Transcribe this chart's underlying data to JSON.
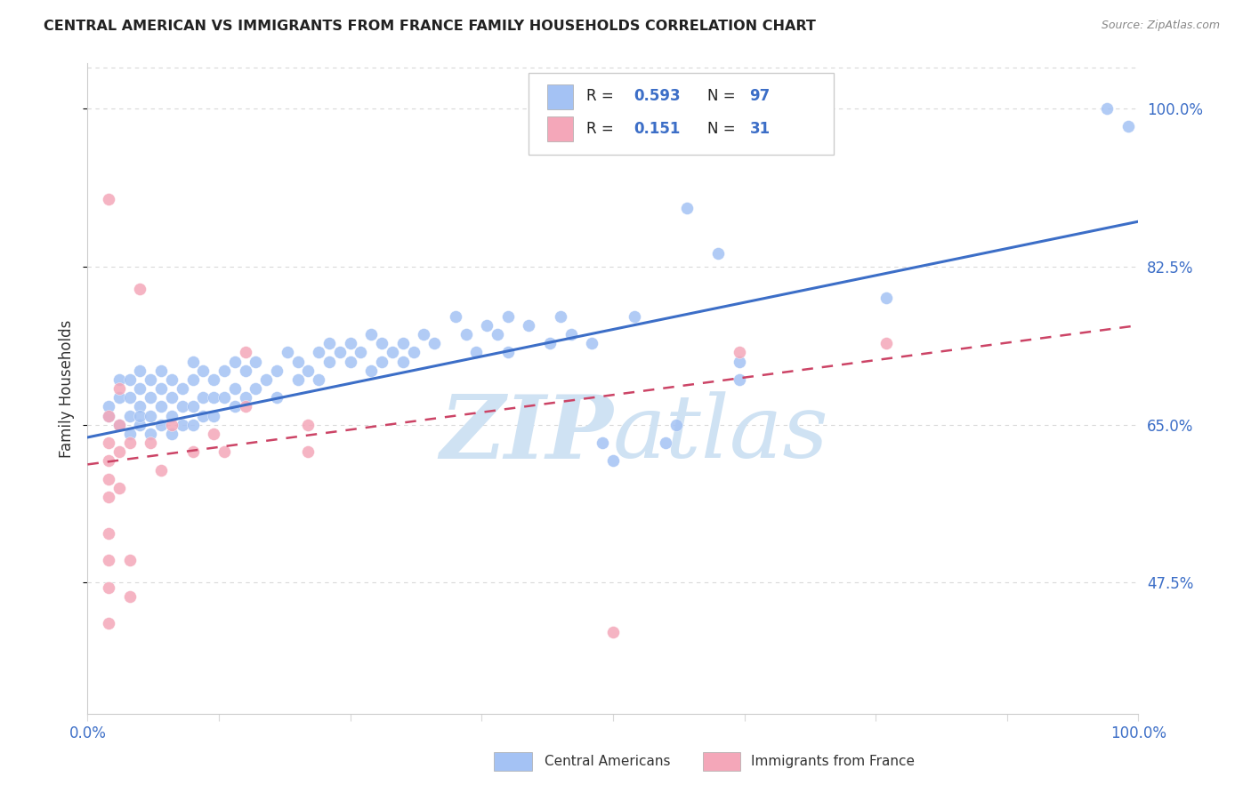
{
  "title": "CENTRAL AMERICAN VS IMMIGRANTS FROM FRANCE FAMILY HOUSEHOLDS CORRELATION CHART",
  "source_text": "Source: ZipAtlas.com",
  "ylabel": "Family Households",
  "legend_label_1": "Central Americans",
  "legend_label_2": "Immigrants from France",
  "r1": "0.593",
  "n1": "97",
  "r2": "0.151",
  "n2": "31",
  "xlim": [
    0.0,
    1.0
  ],
  "ylim": [
    0.33,
    1.05
  ],
  "yticks": [
    0.475,
    0.65,
    0.825,
    1.0
  ],
  "ytick_labels": [
    "47.5%",
    "65.0%",
    "82.5%",
    "100.0%"
  ],
  "xticks": [
    0.0,
    0.125,
    0.25,
    0.375,
    0.5,
    0.625,
    0.75,
    0.875,
    1.0
  ],
  "xtick_labels": [
    "0.0%",
    "",
    "",
    "",
    "",
    "",
    "",
    "",
    "100.0%"
  ],
  "color_blue": "#a4c2f4",
  "color_pink": "#f4a7b9",
  "line_blue": "#3c6ec7",
  "line_pink": "#cc4466",
  "watermark_color": "#cfe2f3",
  "grid_color": "#d9d9d9",
  "tick_color": "#3c6ec7",
  "r_color": "#3c6ec7",
  "label_color": "#222222",
  "blue_scatter": [
    [
      0.02,
      0.66
    ],
    [
      0.02,
      0.67
    ],
    [
      0.03,
      0.65
    ],
    [
      0.03,
      0.68
    ],
    [
      0.03,
      0.7
    ],
    [
      0.04,
      0.64
    ],
    [
      0.04,
      0.66
    ],
    [
      0.04,
      0.68
    ],
    [
      0.04,
      0.7
    ],
    [
      0.05,
      0.65
    ],
    [
      0.05,
      0.67
    ],
    [
      0.05,
      0.69
    ],
    [
      0.05,
      0.71
    ],
    [
      0.05,
      0.66
    ],
    [
      0.06,
      0.64
    ],
    [
      0.06,
      0.66
    ],
    [
      0.06,
      0.68
    ],
    [
      0.06,
      0.7
    ],
    [
      0.07,
      0.65
    ],
    [
      0.07,
      0.67
    ],
    [
      0.07,
      0.69
    ],
    [
      0.07,
      0.71
    ],
    [
      0.08,
      0.64
    ],
    [
      0.08,
      0.66
    ],
    [
      0.08,
      0.68
    ],
    [
      0.08,
      0.7
    ],
    [
      0.09,
      0.65
    ],
    [
      0.09,
      0.67
    ],
    [
      0.09,
      0.69
    ],
    [
      0.1,
      0.65
    ],
    [
      0.1,
      0.67
    ],
    [
      0.1,
      0.7
    ],
    [
      0.1,
      0.72
    ],
    [
      0.11,
      0.66
    ],
    [
      0.11,
      0.68
    ],
    [
      0.11,
      0.71
    ],
    [
      0.12,
      0.66
    ],
    [
      0.12,
      0.68
    ],
    [
      0.12,
      0.7
    ],
    [
      0.13,
      0.68
    ],
    [
      0.13,
      0.71
    ],
    [
      0.14,
      0.67
    ],
    [
      0.14,
      0.69
    ],
    [
      0.14,
      0.72
    ],
    [
      0.15,
      0.68
    ],
    [
      0.15,
      0.71
    ],
    [
      0.16,
      0.69
    ],
    [
      0.16,
      0.72
    ],
    [
      0.17,
      0.7
    ],
    [
      0.18,
      0.68
    ],
    [
      0.18,
      0.71
    ],
    [
      0.19,
      0.73
    ],
    [
      0.2,
      0.7
    ],
    [
      0.2,
      0.72
    ],
    [
      0.21,
      0.71
    ],
    [
      0.22,
      0.73
    ],
    [
      0.22,
      0.7
    ],
    [
      0.23,
      0.72
    ],
    [
      0.23,
      0.74
    ],
    [
      0.24,
      0.73
    ],
    [
      0.25,
      0.72
    ],
    [
      0.25,
      0.74
    ],
    [
      0.26,
      0.73
    ],
    [
      0.27,
      0.71
    ],
    [
      0.27,
      0.75
    ],
    [
      0.28,
      0.72
    ],
    [
      0.28,
      0.74
    ],
    [
      0.29,
      0.73
    ],
    [
      0.3,
      0.72
    ],
    [
      0.3,
      0.74
    ],
    [
      0.31,
      0.73
    ],
    [
      0.32,
      0.75
    ],
    [
      0.33,
      0.74
    ],
    [
      0.35,
      0.77
    ],
    [
      0.36,
      0.75
    ],
    [
      0.37,
      0.73
    ],
    [
      0.38,
      0.76
    ],
    [
      0.39,
      0.75
    ],
    [
      0.4,
      0.73
    ],
    [
      0.4,
      0.77
    ],
    [
      0.42,
      0.76
    ],
    [
      0.44,
      0.74
    ],
    [
      0.45,
      0.77
    ],
    [
      0.46,
      0.75
    ],
    [
      0.48,
      0.74
    ],
    [
      0.49,
      0.63
    ],
    [
      0.5,
      0.61
    ],
    [
      0.52,
      0.77
    ],
    [
      0.55,
      0.63
    ],
    [
      0.56,
      0.65
    ],
    [
      0.57,
      0.89
    ],
    [
      0.6,
      0.84
    ],
    [
      0.62,
      0.72
    ],
    [
      0.62,
      0.7
    ],
    [
      0.76,
      0.79
    ],
    [
      0.97,
      1.0
    ],
    [
      0.99,
      0.98
    ]
  ],
  "pink_scatter": [
    [
      0.02,
      0.66
    ],
    [
      0.02,
      0.63
    ],
    [
      0.02,
      0.61
    ],
    [
      0.02,
      0.59
    ],
    [
      0.02,
      0.57
    ],
    [
      0.02,
      0.53
    ],
    [
      0.02,
      0.5
    ],
    [
      0.02,
      0.47
    ],
    [
      0.02,
      0.43
    ],
    [
      0.03,
      0.69
    ],
    [
      0.03,
      0.65
    ],
    [
      0.03,
      0.62
    ],
    [
      0.03,
      0.58
    ],
    [
      0.04,
      0.63
    ],
    [
      0.04,
      0.5
    ],
    [
      0.04,
      0.46
    ],
    [
      0.05,
      0.8
    ],
    [
      0.06,
      0.63
    ],
    [
      0.07,
      0.6
    ],
    [
      0.08,
      0.65
    ],
    [
      0.1,
      0.62
    ],
    [
      0.12,
      0.64
    ],
    [
      0.13,
      0.62
    ],
    [
      0.15,
      0.73
    ],
    [
      0.15,
      0.67
    ],
    [
      0.21,
      0.65
    ],
    [
      0.21,
      0.62
    ],
    [
      0.5,
      0.42
    ],
    [
      0.62,
      0.73
    ],
    [
      0.76,
      0.74
    ],
    [
      0.02,
      0.9
    ]
  ],
  "blue_line_y_start": 0.636,
  "blue_line_y_end": 0.875,
  "pink_line_y_start": 0.606,
  "pink_line_y_end": 0.76
}
